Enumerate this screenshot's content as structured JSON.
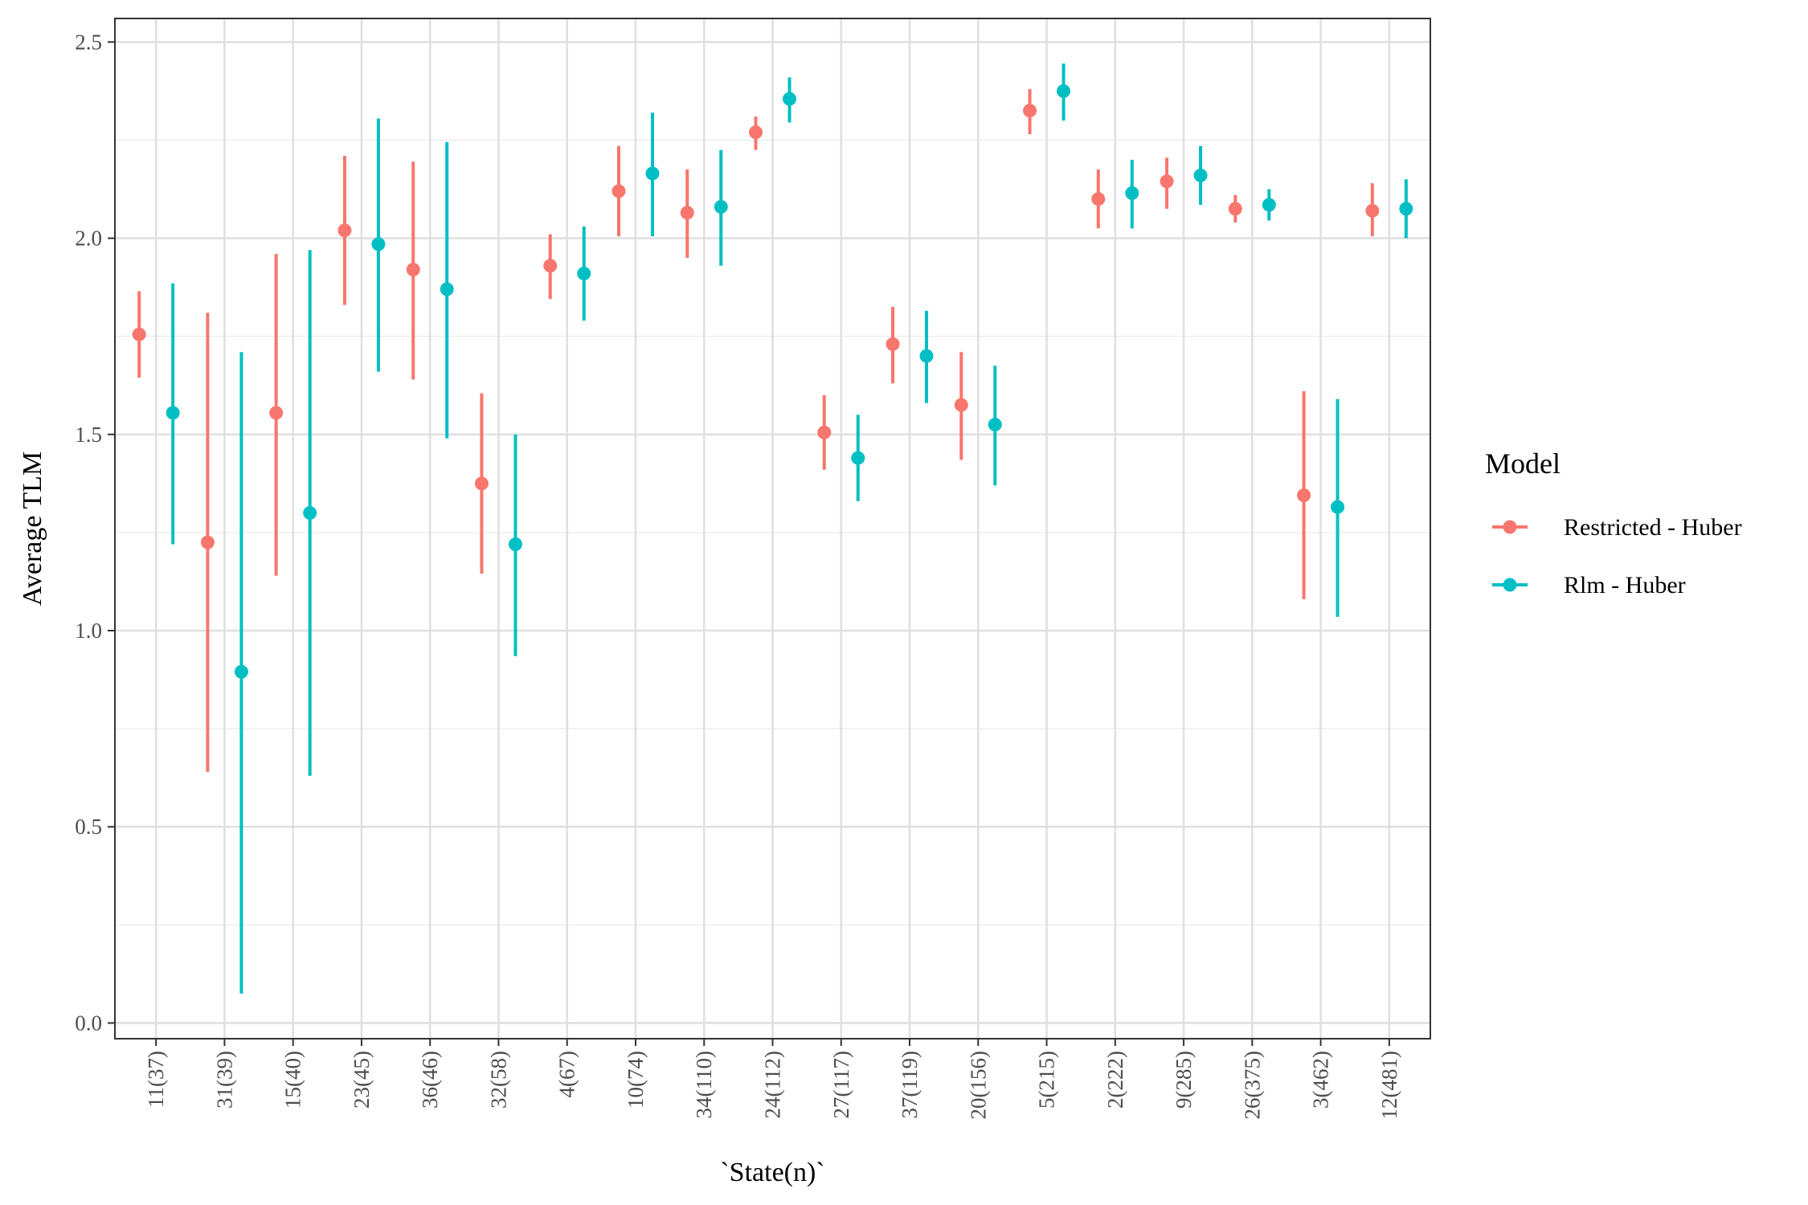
{
  "chart_data": {
    "type": "scatter",
    "subtype": "pointrange",
    "title": "",
    "xlabel": "`State(n)`",
    "ylabel": "Average TLM",
    "ylim": [
      -0.04,
      2.56
    ],
    "y_ticks": [
      "0.0",
      "0.5",
      "1.0",
      "1.5",
      "2.0",
      "2.5"
    ],
    "y_tick_values": [
      0.0,
      0.5,
      1.0,
      1.5,
      2.0,
      2.5
    ],
    "grid": true,
    "legend": {
      "title": "Model",
      "position": "right"
    },
    "categories": [
      "11(37)",
      "31(39)",
      "15(40)",
      "23(45)",
      "36(46)",
      "32(58)",
      "4(67)",
      "10(74)",
      "34(110)",
      "24(112)",
      "27(117)",
      "37(119)",
      "20(156)",
      "5(215)",
      "2(222)",
      "9(285)",
      "26(375)",
      "3(462)",
      "12(481)"
    ],
    "series": [
      {
        "name": "Restricted - Huber",
        "color": "#F8766D",
        "values": [
          1.755,
          1.225,
          1.555,
          2.02,
          1.92,
          1.375,
          1.93,
          2.12,
          2.065,
          2.27,
          1.505,
          1.73,
          1.575,
          2.325,
          2.1,
          2.145,
          2.075,
          1.345,
          2.07
        ],
        "lower": [
          1.645,
          0.64,
          1.14,
          1.83,
          1.64,
          1.145,
          1.845,
          2.005,
          1.95,
          2.225,
          1.41,
          1.63,
          1.435,
          2.265,
          2.025,
          2.075,
          2.04,
          1.08,
          2.005
        ],
        "upper": [
          1.865,
          1.81,
          1.96,
          2.21,
          2.195,
          1.605,
          2.01,
          2.235,
          2.175,
          2.31,
          1.6,
          1.825,
          1.71,
          2.38,
          2.175,
          2.205,
          2.11,
          1.61,
          2.14
        ]
      },
      {
        "name": "Rlm - Huber",
        "color": "#00BFC4",
        "values": [
          1.555,
          0.895,
          1.3,
          1.985,
          1.87,
          1.22,
          1.91,
          2.165,
          2.08,
          2.355,
          1.44,
          1.7,
          1.525,
          2.375,
          2.115,
          2.16,
          2.085,
          1.315,
          2.075
        ],
        "lower": [
          1.22,
          0.075,
          0.63,
          1.66,
          1.49,
          0.935,
          1.79,
          2.005,
          1.93,
          2.295,
          1.33,
          1.58,
          1.37,
          2.3,
          2.025,
          2.085,
          2.045,
          1.035,
          2.0
        ],
        "upper": [
          1.885,
          1.71,
          1.97,
          2.305,
          2.245,
          1.5,
          2.03,
          2.32,
          2.225,
          2.41,
          1.55,
          1.815,
          1.675,
          2.445,
          2.2,
          2.235,
          2.125,
          1.59,
          2.15
        ]
      }
    ]
  }
}
